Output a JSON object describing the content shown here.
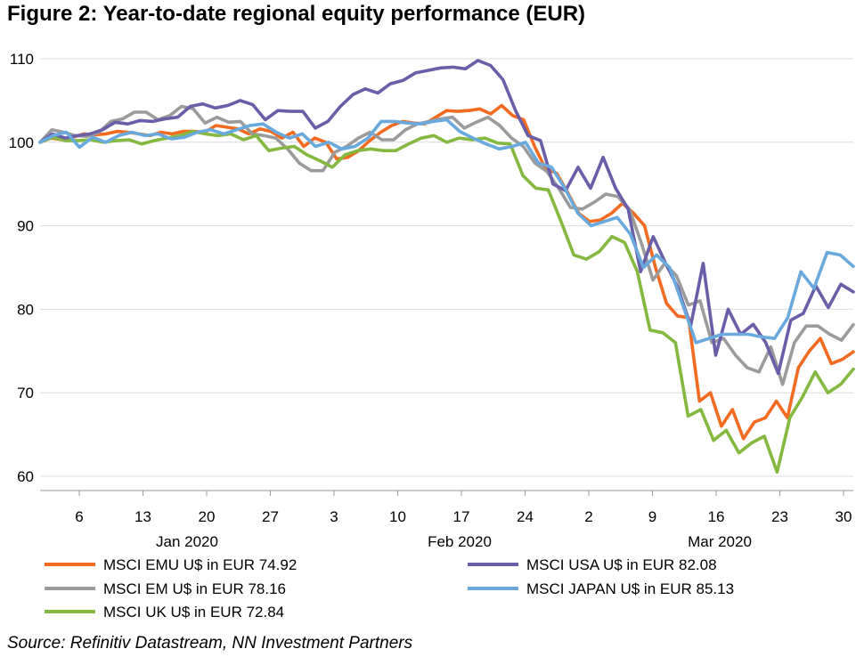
{
  "chart_data": {
    "type": "line",
    "title": "Figure 2: Year-to-date regional equity performance (EUR)",
    "source": "Source: Refinitiv Datastream, NN Investment Partners",
    "xlabel": "",
    "ylabel": "",
    "ylim": [
      60,
      110
    ],
    "y_ticks": [
      60,
      70,
      80,
      90,
      100,
      110
    ],
    "grid": true,
    "legend_position": "bottom",
    "x_tick_labels": [
      "6",
      "13",
      "20",
      "27",
      "3",
      "10",
      "17",
      "24",
      "2",
      "9",
      "16",
      "23",
      "30"
    ],
    "month_labels": [
      "Jan 2020",
      "Feb 2020",
      "Mar 2020"
    ],
    "series": [
      {
        "name": "MSCI EMU U$ in EUR 74.92",
        "color": "#f26b21",
        "values": [
          100,
          100.5,
          100.3,
          100.6,
          101.0,
          100.9,
          101.0,
          101.3,
          101.2,
          101.0,
          100.8,
          101.2,
          101.0,
          101.3,
          101.3,
          101.2,
          102.0,
          101.8,
          101.6,
          101.0,
          101.6,
          101.3,
          100.5,
          101.2,
          99.5,
          100.5,
          100.0,
          98.0,
          98.2,
          99.0,
          100.2,
          101.2,
          102.0,
          102.5,
          102.3,
          102.2,
          103.0,
          103.8,
          103.7,
          103.8,
          104.0,
          103.4,
          104.4,
          103.2,
          102.7,
          99.5,
          96.8,
          96.3,
          94.0,
          91.5,
          90.5,
          90.7,
          91.5,
          92.7,
          91.5,
          90.0,
          85.0,
          80.7,
          79.2,
          79.0,
          69.0,
          70.0,
          66.0,
          68.0,
          64.5,
          66.5,
          67.0,
          69.0,
          67.0,
          73.0,
          75.0,
          76.5,
          73.5,
          74.0,
          74.92
        ]
      },
      {
        "name": "MSCI EM U$ in EUR 78.16",
        "color": "#9b9b9b",
        "values": [
          100,
          101.5,
          101.2,
          100.8,
          100.7,
          101.2,
          102.5,
          102.8,
          103.6,
          103.6,
          102.7,
          103.2,
          104.3,
          104.0,
          102.3,
          103.0,
          102.4,
          102.5,
          101.0,
          100.8,
          100.5,
          99.2,
          97.5,
          96.6,
          96.6,
          98.8,
          99.5,
          100.5,
          101.2,
          100.3,
          100.3,
          101.5,
          102.2,
          102.5,
          102.8,
          103.0,
          101.7,
          102.4,
          103.0,
          102.0,
          100.5,
          99.5,
          97.5,
          96.5,
          94.5,
          92.2,
          92.0,
          92.8,
          93.8,
          93.5,
          92.0,
          88.0,
          83.5,
          85.5,
          84.0,
          80.5,
          81.0,
          76.0,
          76.5,
          74.5,
          73.0,
          72.5,
          75.5,
          71.0,
          76.0,
          78.0,
          78.0,
          77.0,
          76.3,
          78.16
        ]
      },
      {
        "name": "MSCI UK U$ in EUR 72.84",
        "color": "#84b93f",
        "values": [
          100,
          100.6,
          100.2,
          100.2,
          100.3,
          100.0,
          100.2,
          100.3,
          99.8,
          100.2,
          100.5,
          100.8,
          101.3,
          101.0,
          100.8,
          101.0,
          100.3,
          100.8,
          99.0,
          99.3,
          99.5,
          98.5,
          97.8,
          97.0,
          98.5,
          99.0,
          99.2,
          99.0,
          99.0,
          99.8,
          100.5,
          100.8,
          100.0,
          100.5,
          100.3,
          100.5,
          99.9,
          99.8,
          96.0,
          94.5,
          94.3,
          90.5,
          86.5,
          86.0,
          86.9,
          88.7,
          88.0,
          84.5,
          77.5,
          77.2,
          76.0,
          67.2,
          68.0,
          64.3,
          65.5,
          62.8,
          64.0,
          64.8,
          60.5,
          67.0,
          69.5,
          72.5,
          70.0,
          71.0,
          72.84
        ]
      },
      {
        "name": "MSCI USA U$ in EUR 82.08",
        "color": "#6a5ea8",
        "values": [
          100,
          101.0,
          100.5,
          100.8,
          101.0,
          101.5,
          102.4,
          102.2,
          102.6,
          102.5,
          102.8,
          103.0,
          104.3,
          104.6,
          104.1,
          104.4,
          105.0,
          104.5,
          102.7,
          103.8,
          103.7,
          103.7,
          101.7,
          102.5,
          104.3,
          105.7,
          106.4,
          105.9,
          107.0,
          107.4,
          108.3,
          108.6,
          108.9,
          109.0,
          108.8,
          109.8,
          109.2,
          107.5,
          103.8,
          100.8,
          100.2,
          95.0,
          94.2,
          97.0,
          94.5,
          98.2,
          94.5,
          92.0,
          84.5,
          88.7,
          85.5,
          82.5,
          78.0,
          85.5,
          74.5,
          80.0,
          77.0,
          78.2,
          76.0,
          72.3,
          78.7,
          79.5,
          82.8,
          80.2,
          83.0,
          82.08
        ]
      },
      {
        "name": "MSCI JAPAN U$ in EUR 85.13",
        "color": "#6aa9de",
        "values": [
          100,
          100.8,
          101.2,
          99.4,
          100.6,
          100.0,
          100.8,
          101.2,
          100.8,
          101.0,
          100.4,
          100.6,
          101.2,
          101.5,
          101.0,
          101.5,
          102.0,
          102.2,
          101.2,
          100.5,
          101.0,
          99.5,
          100.0,
          99.2,
          99.5,
          100.5,
          102.5,
          102.5,
          102.3,
          102.2,
          102.5,
          102.7,
          101.3,
          100.5,
          99.8,
          99.2,
          99.5,
          100.0,
          97.5,
          97.0,
          94.5,
          91.5,
          90.0,
          90.5,
          91.0,
          89.0,
          85.0,
          86.5,
          85.0,
          80.5,
          76.0,
          76.5,
          77.0,
          77.0,
          77.0,
          76.7,
          76.5,
          79.0,
          84.5,
          82.5,
          86.8,
          86.5,
          85.13
        ]
      }
    ]
  }
}
